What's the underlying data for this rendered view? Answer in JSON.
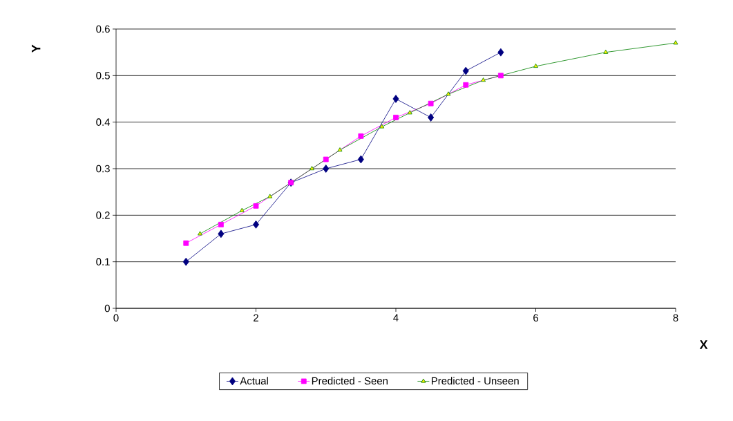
{
  "chart_data": {
    "type": "line",
    "xlabel": "X",
    "ylabel": "Y",
    "xlim": [
      0,
      8
    ],
    "xticks": [
      0,
      2,
      4,
      6,
      8
    ],
    "ylim": [
      0,
      0.6
    ],
    "yticks": [
      0,
      0.1,
      0.2,
      0.3,
      0.4,
      0.5,
      0.6
    ],
    "grid": "y",
    "legend": "bottom",
    "series": [
      {
        "name": "Actual",
        "color": "#000080",
        "marker": "diamond",
        "x": [
          1,
          1.5,
          2,
          2.5,
          3,
          3.5,
          4,
          4.5,
          5,
          5.5
        ],
        "values": [
          0.1,
          0.16,
          0.18,
          0.27,
          0.3,
          0.32,
          0.45,
          0.41,
          0.51,
          0.55
        ]
      },
      {
        "name": "Predicted - Seen",
        "color": "#ff00ff",
        "marker": "square",
        "x": [
          1,
          1.5,
          2,
          2.5,
          3,
          3.5,
          4,
          4.5,
          5,
          5.5
        ],
        "values": [
          0.14,
          0.18,
          0.22,
          0.27,
          0.32,
          0.37,
          0.41,
          0.44,
          0.48,
          0.5
        ]
      },
      {
        "name": "Predicted - Unseen",
        "color": "#008000",
        "marker": "triangle",
        "x": [
          1.2,
          1.8,
          2.2,
          2.8,
          3.2,
          3.8,
          4.2,
          4.75,
          5.25,
          6,
          7,
          8
        ],
        "values": [
          0.16,
          0.21,
          0.24,
          0.3,
          0.34,
          0.39,
          0.42,
          0.46,
          0.49,
          0.52,
          0.55,
          0.57
        ]
      }
    ]
  }
}
